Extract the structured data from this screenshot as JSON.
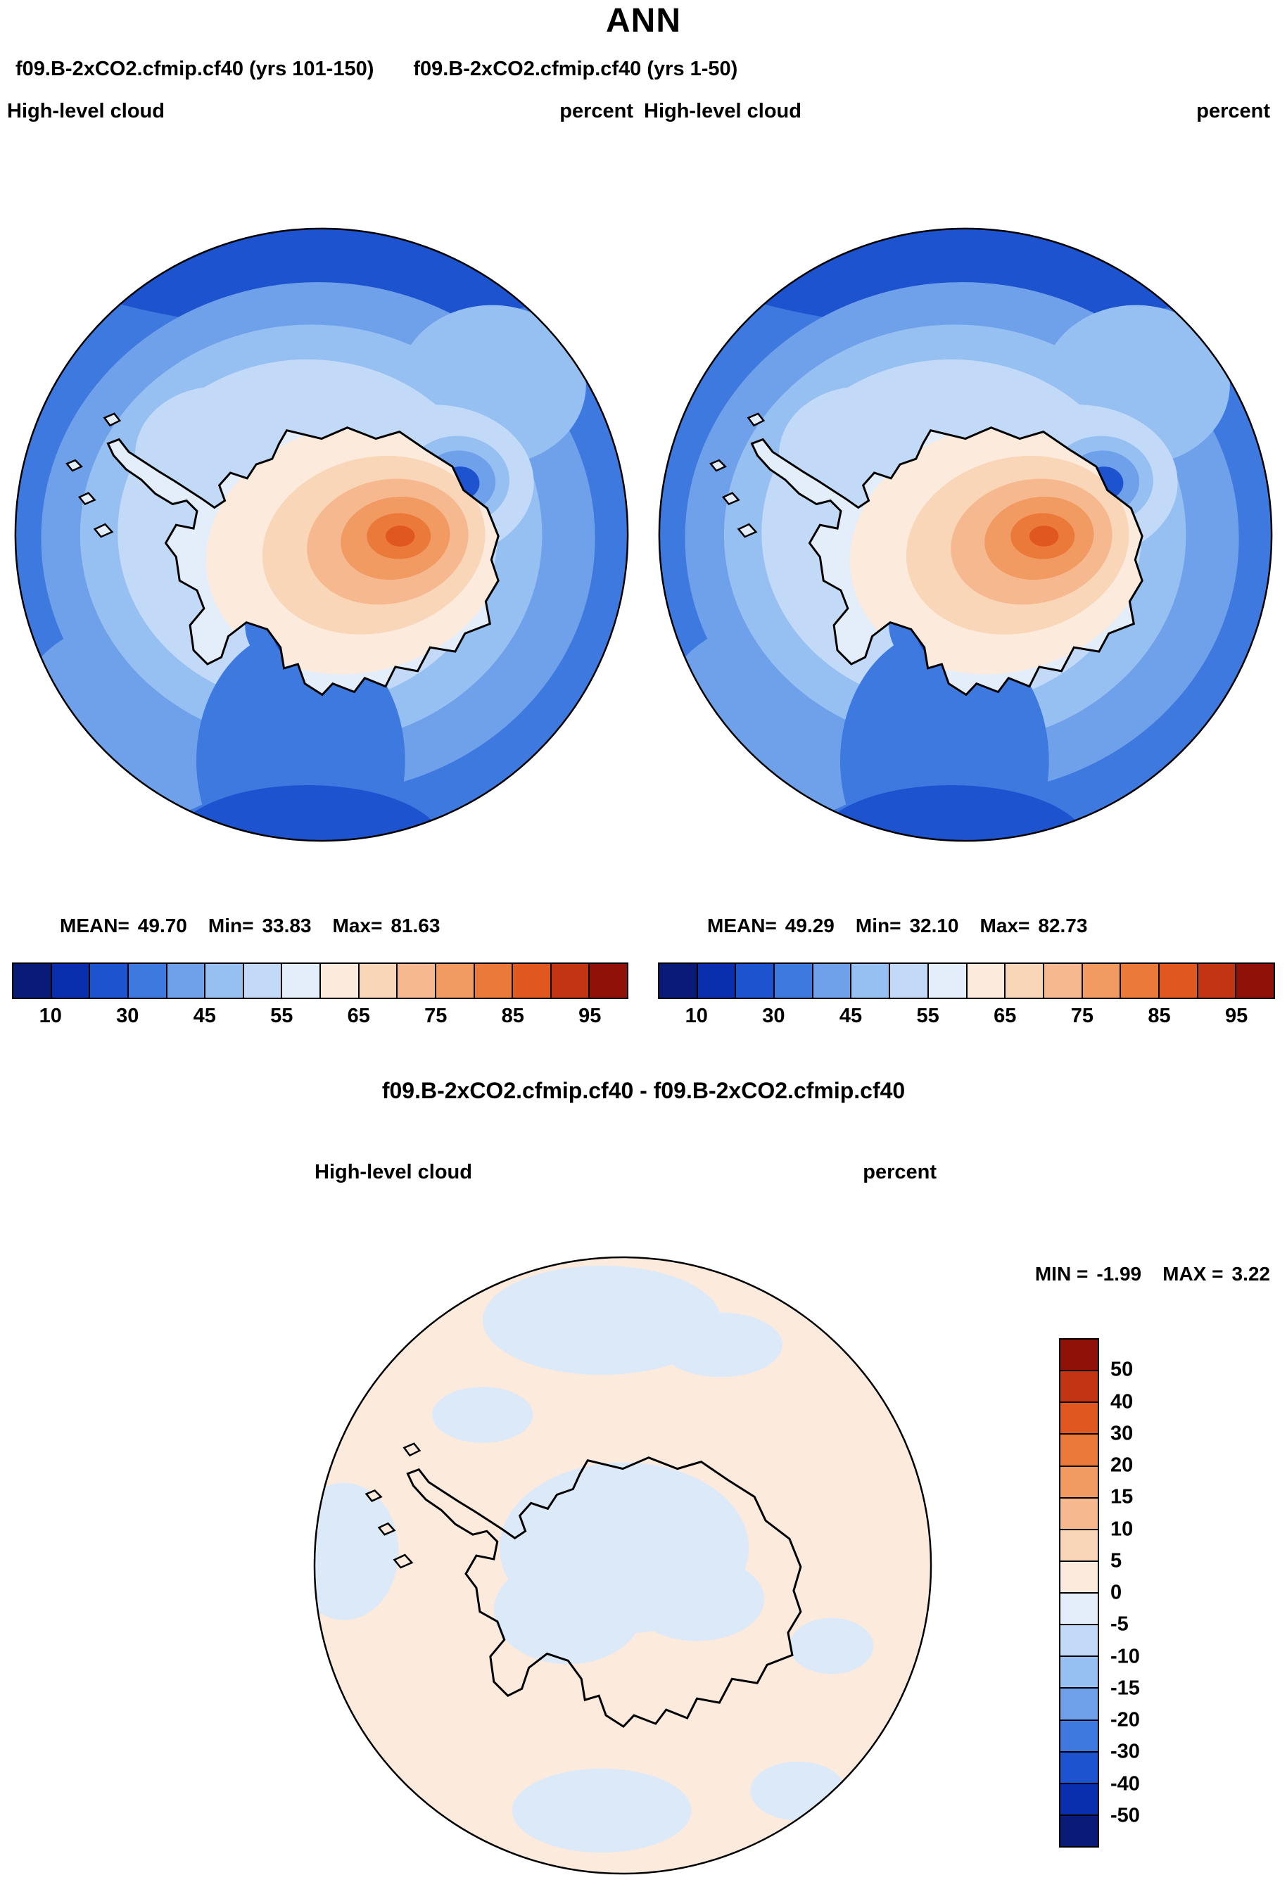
{
  "page_title": "ANN",
  "panels": {
    "left": {
      "subtitle": "f09.B-2xCO2.cfmip.cf40 (yrs 101-150)",
      "field": "High-level cloud",
      "units": "percent",
      "mean_label": "MEAN=",
      "mean": "49.70",
      "min_label": "Min=",
      "min": "33.83",
      "max_label": "Max=",
      "max": "81.63"
    },
    "right": {
      "subtitle": "f09.B-2xCO2.cfmip.cf40 (yrs 1-50)",
      "field": "High-level cloud",
      "units": "percent",
      "mean_label": "MEAN=",
      "mean": "49.29",
      "min_label": "Min=",
      "min": "32.10",
      "max_label": "Max=",
      "max": "82.73"
    },
    "diff": {
      "title": "f09.B-2xCO2.cfmip.cf40 - f09.B-2xCO2.cfmip.cf40",
      "field": "High-level cloud",
      "units": "percent",
      "min_label": "MIN =",
      "min": "-1.99",
      "max_label": "MAX =",
      "max": "3.22"
    }
  },
  "colorbars": {
    "cloud": {
      "orientation": "horizontal",
      "tick_labels": [
        10,
        30,
        45,
        55,
        65,
        75,
        85,
        95
      ],
      "colors": [
        "#0a1a77",
        "#0a2fae",
        "#1e53cf",
        "#3e79e0",
        "#6fa0ea",
        "#97c0f2",
        "#c2d9f7",
        "#e4eefb",
        "#fcebdd",
        "#fad6b8",
        "#f6b88e",
        "#f19a62",
        "#eb7a3a",
        "#e0571f",
        "#c33413",
        "#8f1108"
      ]
    },
    "diff": {
      "orientation": "vertical",
      "tick_labels": [
        50,
        40,
        30,
        20,
        15,
        10,
        5,
        0,
        -5,
        -10,
        -15,
        -20,
        -30,
        -40,
        -50
      ],
      "colors": [
        "#8f1108",
        "#c33413",
        "#e0571f",
        "#eb7a3a",
        "#f19a62",
        "#f6b88e",
        "#fad6b8",
        "#fcebdd",
        "#e4eefb",
        "#c2d9f7",
        "#97c0f2",
        "#6fa0ea",
        "#3e79e0",
        "#1e53cf",
        "#0a2fae",
        "#0a1a77"
      ]
    }
  },
  "chart_data": [
    {
      "type": "heatmap",
      "subtype": "filled-contour-map",
      "projection": "south-polar-stereographic",
      "region": "Antarctica / Southern Ocean",
      "title": "f09.B-2xCO2.cfmip.cf40 (yrs 101-150)",
      "season": "ANN",
      "variable": "High-level cloud",
      "units": "percent",
      "stats": {
        "mean": 49.7,
        "min": 33.83,
        "max": 81.63
      },
      "contour_levels": [
        10,
        20,
        30,
        40,
        45,
        50,
        55,
        60,
        65,
        70,
        75,
        80,
        85,
        90,
        95
      ],
      "colorbar_tick_labels": [
        10,
        30,
        45,
        55,
        65,
        75,
        85,
        95
      ],
      "colors": [
        "#0a1a77",
        "#0a2fae",
        "#1e53cf",
        "#3e79e0",
        "#6fa0ea",
        "#97c0f2",
        "#c2d9f7",
        "#e4eefb",
        "#fcebdd",
        "#fad6b8",
        "#f6b88e",
        "#f19a62",
        "#eb7a3a",
        "#e0571f",
        "#c33413",
        "#8f1108"
      ],
      "legend_position": "bottom"
    },
    {
      "type": "heatmap",
      "subtype": "filled-contour-map",
      "projection": "south-polar-stereographic",
      "region": "Antarctica / Southern Ocean",
      "title": "f09.B-2xCO2.cfmip.cf40 (yrs 1-50)",
      "season": "ANN",
      "variable": "High-level cloud",
      "units": "percent",
      "stats": {
        "mean": 49.29,
        "min": 32.1,
        "max": 82.73
      },
      "contour_levels": [
        10,
        20,
        30,
        40,
        45,
        50,
        55,
        60,
        65,
        70,
        75,
        80,
        85,
        90,
        95
      ],
      "colorbar_tick_labels": [
        10,
        30,
        45,
        55,
        65,
        75,
        85,
        95
      ],
      "colors": [
        "#0a1a77",
        "#0a2fae",
        "#1e53cf",
        "#3e79e0",
        "#6fa0ea",
        "#97c0f2",
        "#c2d9f7",
        "#e4eefb",
        "#fcebdd",
        "#fad6b8",
        "#f6b88e",
        "#f19a62",
        "#eb7a3a",
        "#e0571f",
        "#c33413",
        "#8f1108"
      ],
      "legend_position": "bottom"
    },
    {
      "type": "heatmap",
      "subtype": "filled-contour-difference-map",
      "projection": "south-polar-stereographic",
      "region": "Antarctica / Southern Ocean",
      "title": "f09.B-2xCO2.cfmip.cf40 - f09.B-2xCO2.cfmip.cf40",
      "season": "ANN",
      "variable": "High-level cloud",
      "units": "percent",
      "stats": {
        "min": -1.99,
        "max": 3.22
      },
      "contour_levels": [
        -50,
        -40,
        -30,
        -20,
        -15,
        -10,
        -5,
        0,
        5,
        10,
        15,
        20,
        30,
        40,
        50
      ],
      "colorbar_tick_labels": [
        50,
        40,
        30,
        20,
        15,
        10,
        5,
        0,
        -5,
        -10,
        -15,
        -20,
        -30,
        -40,
        -50
      ],
      "colors": [
        "#8f1108",
        "#c33413",
        "#e0571f",
        "#eb7a3a",
        "#f19a62",
        "#f6b88e",
        "#fad6b8",
        "#fcebdd",
        "#e4eefb",
        "#c2d9f7",
        "#97c0f2",
        "#6fa0ea",
        "#3e79e0",
        "#1e53cf",
        "#0a2fae",
        "#0a1a77"
      ],
      "legend_position": "right"
    }
  ]
}
